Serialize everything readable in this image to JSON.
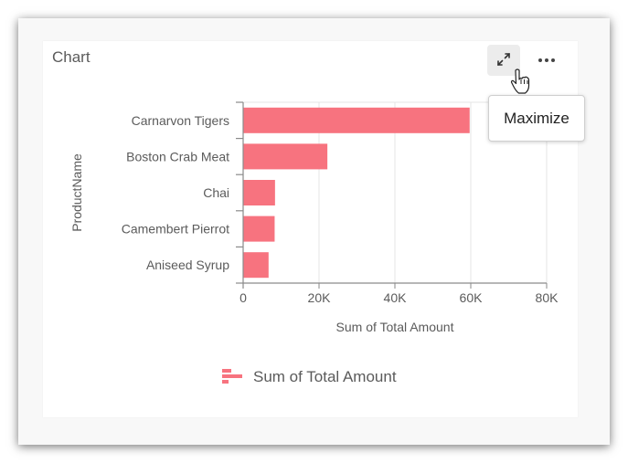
{
  "card": {
    "title": "Chart",
    "actions": {
      "maximize_icon": "maximize-icon",
      "more_icon": "more-horizontal-icon"
    },
    "tooltip": "Maximize"
  },
  "chart_data": {
    "type": "bar",
    "orientation": "horizontal",
    "title": "",
    "categories": [
      "Carnarvon Tigers",
      "Boston Crab Meat",
      "Chai",
      "Camembert Pierrot",
      "Aniseed Syrup"
    ],
    "series": [
      {
        "name": "Sum of Total Amount",
        "values": [
          59700,
          22200,
          8400,
          8300,
          6700
        ],
        "color": "#f7737f"
      }
    ],
    "xlabel": "Sum of Total Amount",
    "ylabel": "ProductName",
    "xlim": [
      0,
      80000
    ],
    "xticks": [
      "0",
      "20K",
      "40K",
      "60K",
      "80K"
    ],
    "grid": true,
    "legend": {
      "position": "bottom",
      "entries": [
        "Sum of Total Amount"
      ]
    }
  },
  "colors": {
    "bar": "#f7737f",
    "text": "#5b5b5b",
    "grid": "#e4e4e4",
    "axis": "#8a8a8a"
  }
}
